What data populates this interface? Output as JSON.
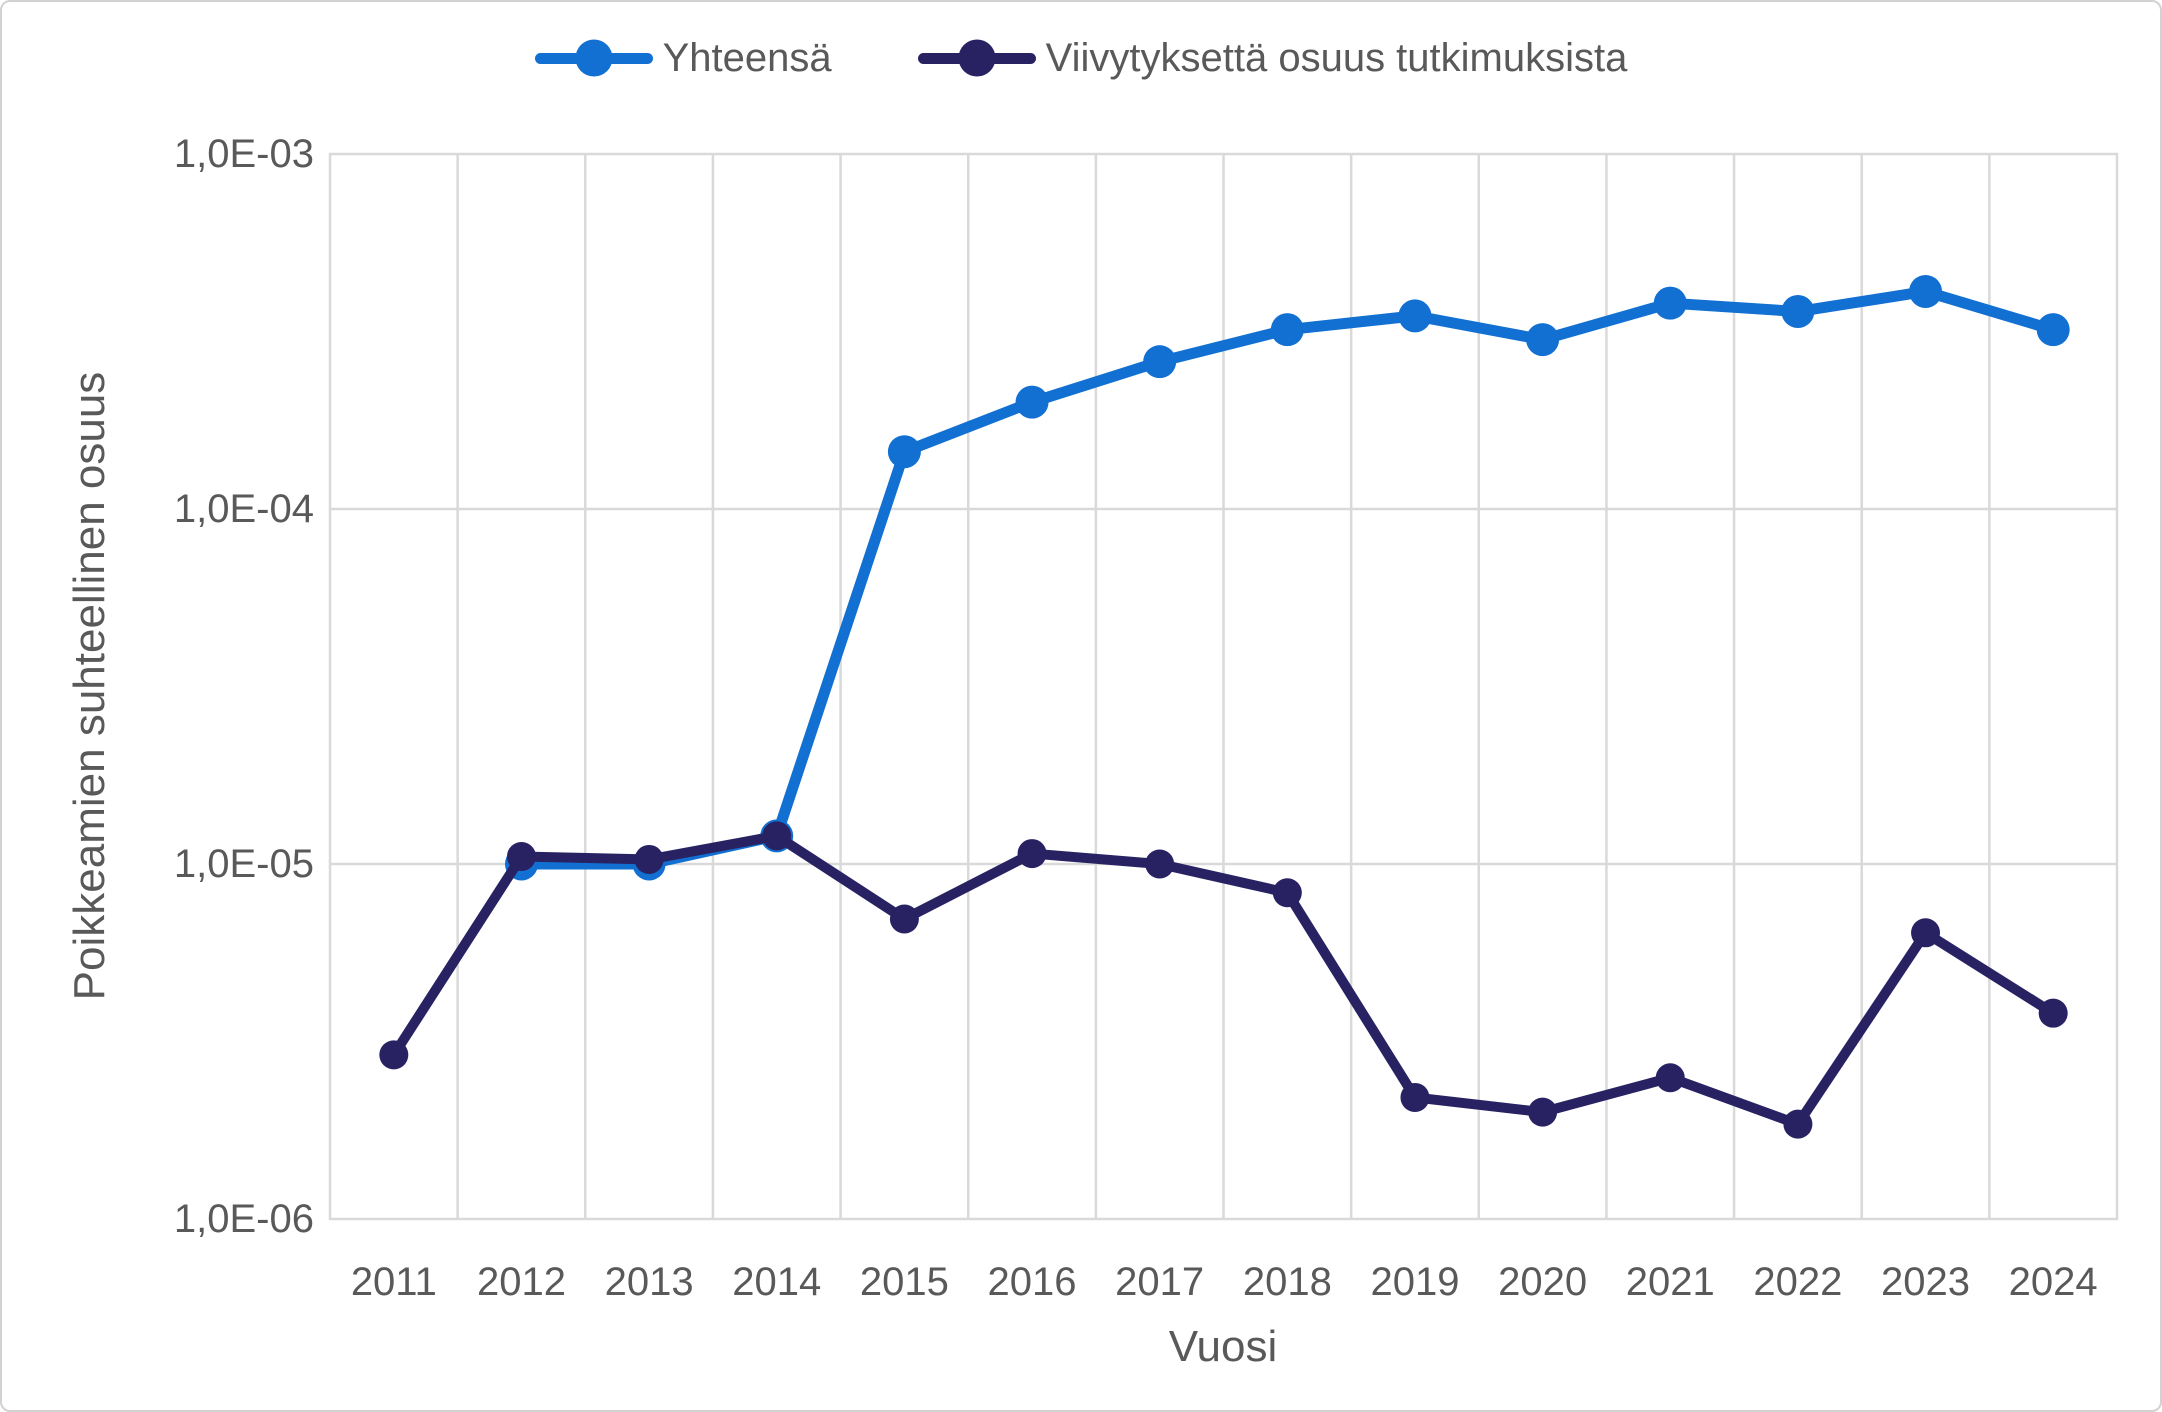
{
  "chart_data": {
    "type": "line",
    "title": "",
    "xlabel": "Vuosi",
    "ylabel": "Poikkeamien suhteellinen osuus",
    "y_scale": "log",
    "ylim": [
      1e-06,
      0.001
    ],
    "grid": true,
    "legend_position": "top-center",
    "categories": [
      "2011",
      "2012",
      "2013",
      "2014",
      "2015",
      "2016",
      "2017",
      "2018",
      "2019",
      "2020",
      "2021",
      "2022",
      "2023",
      "2024"
    ],
    "y_ticks": [
      {
        "label": "1,0E-03",
        "value": 0.001
      },
      {
        "label": "1,0E-04",
        "value": 0.0001
      },
      {
        "label": "1,0E-05",
        "value": 1e-05
      },
      {
        "label": "1,0E-06",
        "value": 1e-06
      }
    ],
    "series": [
      {
        "name": "Yhteensä",
        "color": "#1170d2",
        "values": [
          null,
          1e-05,
          1e-05,
          1.2e-05,
          0.000145,
          0.0002,
          0.00026,
          0.00032,
          0.00035,
          0.0003,
          0.00038,
          0.00036,
          0.00041,
          0.00032
        ]
      },
      {
        "name": "Viivytyksettä osuus tutkimuksista",
        "color": "#282263",
        "values": [
          2.9e-06,
          1.05e-05,
          1.03e-05,
          1.2e-05,
          7e-06,
          1.07e-05,
          1e-05,
          8.3e-06,
          2.2e-06,
          2e-06,
          2.5e-06,
          1.85e-06,
          6.4e-06,
          3.8e-06
        ]
      }
    ]
  },
  "colors": {
    "text": "#595959",
    "grid": "#d9d9d9",
    "plot_border": "#d9d9d9",
    "background": "#ffffff"
  }
}
